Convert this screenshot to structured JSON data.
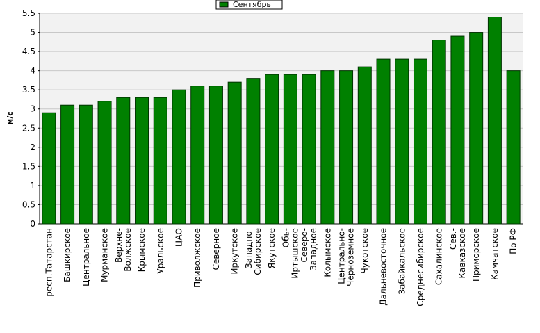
{
  "chart_data": {
    "type": "bar",
    "y_label": "м/с",
    "categories": [
      "респ.Татарстан",
      "Башкирское",
      "Центральное",
      "Мурманское",
      "Верхне-Волжское",
      "Крымское",
      "Уральское",
      "ЦАО",
      "Приволжское",
      "Северное",
      "Иркутское",
      "Западно-Сибирское",
      "Якутское",
      "Обь-Иртышское",
      "Северо-Западное",
      "Колымское",
      "Центрально-Черноземное",
      "Чукотское",
      "Дальневосточное",
      "Забайкальское",
      "Среднесибирское",
      "Сахалинское",
      "Сев.-Кавказское",
      "Приморское",
      "Камчатское",
      "По РФ"
    ],
    "series": [
      {
        "name": "Сентябрь",
        "color": "#008000",
        "values": [
          2.9,
          3.1,
          3.1,
          3.2,
          3.3,
          3.3,
          3.3,
          3.5,
          3.6,
          3.6,
          3.7,
          3.8,
          3.9,
          3.9,
          3.9,
          4.0,
          4.0,
          4.1,
          4.3,
          4.3,
          4.3,
          4.8,
          4.9,
          5.0,
          5.4,
          4.0
        ]
      }
    ],
    "ylim": [
      0,
      5.5
    ],
    "yticks": [
      0,
      0.5,
      1,
      1.5,
      2,
      2.5,
      3,
      3.5,
      4,
      4.5,
      5,
      5.5
    ],
    "grid": true,
    "legend": "top"
  }
}
